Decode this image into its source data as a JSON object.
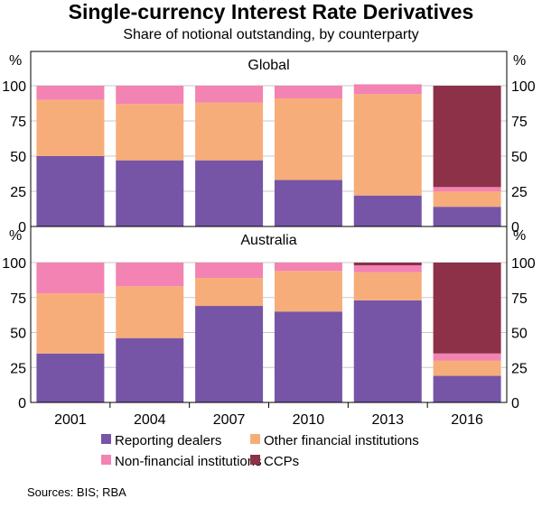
{
  "title": "Single-currency Interest Rate Derivatives",
  "subtitle": "Share of notional outstanding, by counterparty",
  "source": "Sources:   BIS; RBA",
  "unit_label": "%",
  "colors": {
    "Reporting dealers": "#7655a6",
    "Other financial institutions": "#f7ad7a",
    "Non-financial institutions": "#f283b2",
    "CCPs": "#8c3148"
  },
  "legend": {
    "items": [
      {
        "label": "Reporting dealers",
        "color": "#7655a6"
      },
      {
        "label": "Other financial institutions",
        "color": "#f7ad7a"
      },
      {
        "label": "Non-financial institutions",
        "color": "#f283b2"
      },
      {
        "label": "CCPs",
        "color": "#8c3148"
      }
    ]
  },
  "chart_data": [
    {
      "type": "bar",
      "stacked": true,
      "title": "Global",
      "categories": [
        "2001",
        "2004",
        "2007",
        "2010",
        "2013",
        "2016"
      ],
      "ylim": [
        0,
        100
      ],
      "yticks": [
        0,
        25,
        50,
        75,
        100
      ],
      "series": [
        {
          "name": "Reporting dealers",
          "values": [
            50,
            47,
            47,
            33,
            22,
            14
          ]
        },
        {
          "name": "Other financial institutions",
          "values": [
            40,
            40,
            41,
            58,
            72,
            11
          ]
        },
        {
          "name": "Non-financial institutions",
          "values": [
            10,
            13,
            12,
            9,
            7,
            3
          ]
        },
        {
          "name": "CCPs",
          "values": [
            0,
            0,
            0,
            0,
            0,
            72
          ]
        }
      ]
    },
    {
      "type": "bar",
      "stacked": true,
      "title": "Australia",
      "categories": [
        "2001",
        "2004",
        "2007",
        "2010",
        "2013",
        "2016"
      ],
      "ylim": [
        0,
        100
      ],
      "yticks": [
        0,
        25,
        50,
        75,
        100
      ],
      "series": [
        {
          "name": "Reporting dealers",
          "values": [
            35,
            46,
            69,
            65,
            73,
            19
          ]
        },
        {
          "name": "Other financial institutions",
          "values": [
            43,
            37,
            20,
            29,
            20,
            11
          ]
        },
        {
          "name": "Non-financial institutions",
          "values": [
            22,
            17,
            11,
            6,
            5,
            5
          ]
        },
        {
          "name": "CCPs",
          "values": [
            0,
            0,
            0,
            0,
            2,
            65
          ]
        }
      ]
    }
  ]
}
